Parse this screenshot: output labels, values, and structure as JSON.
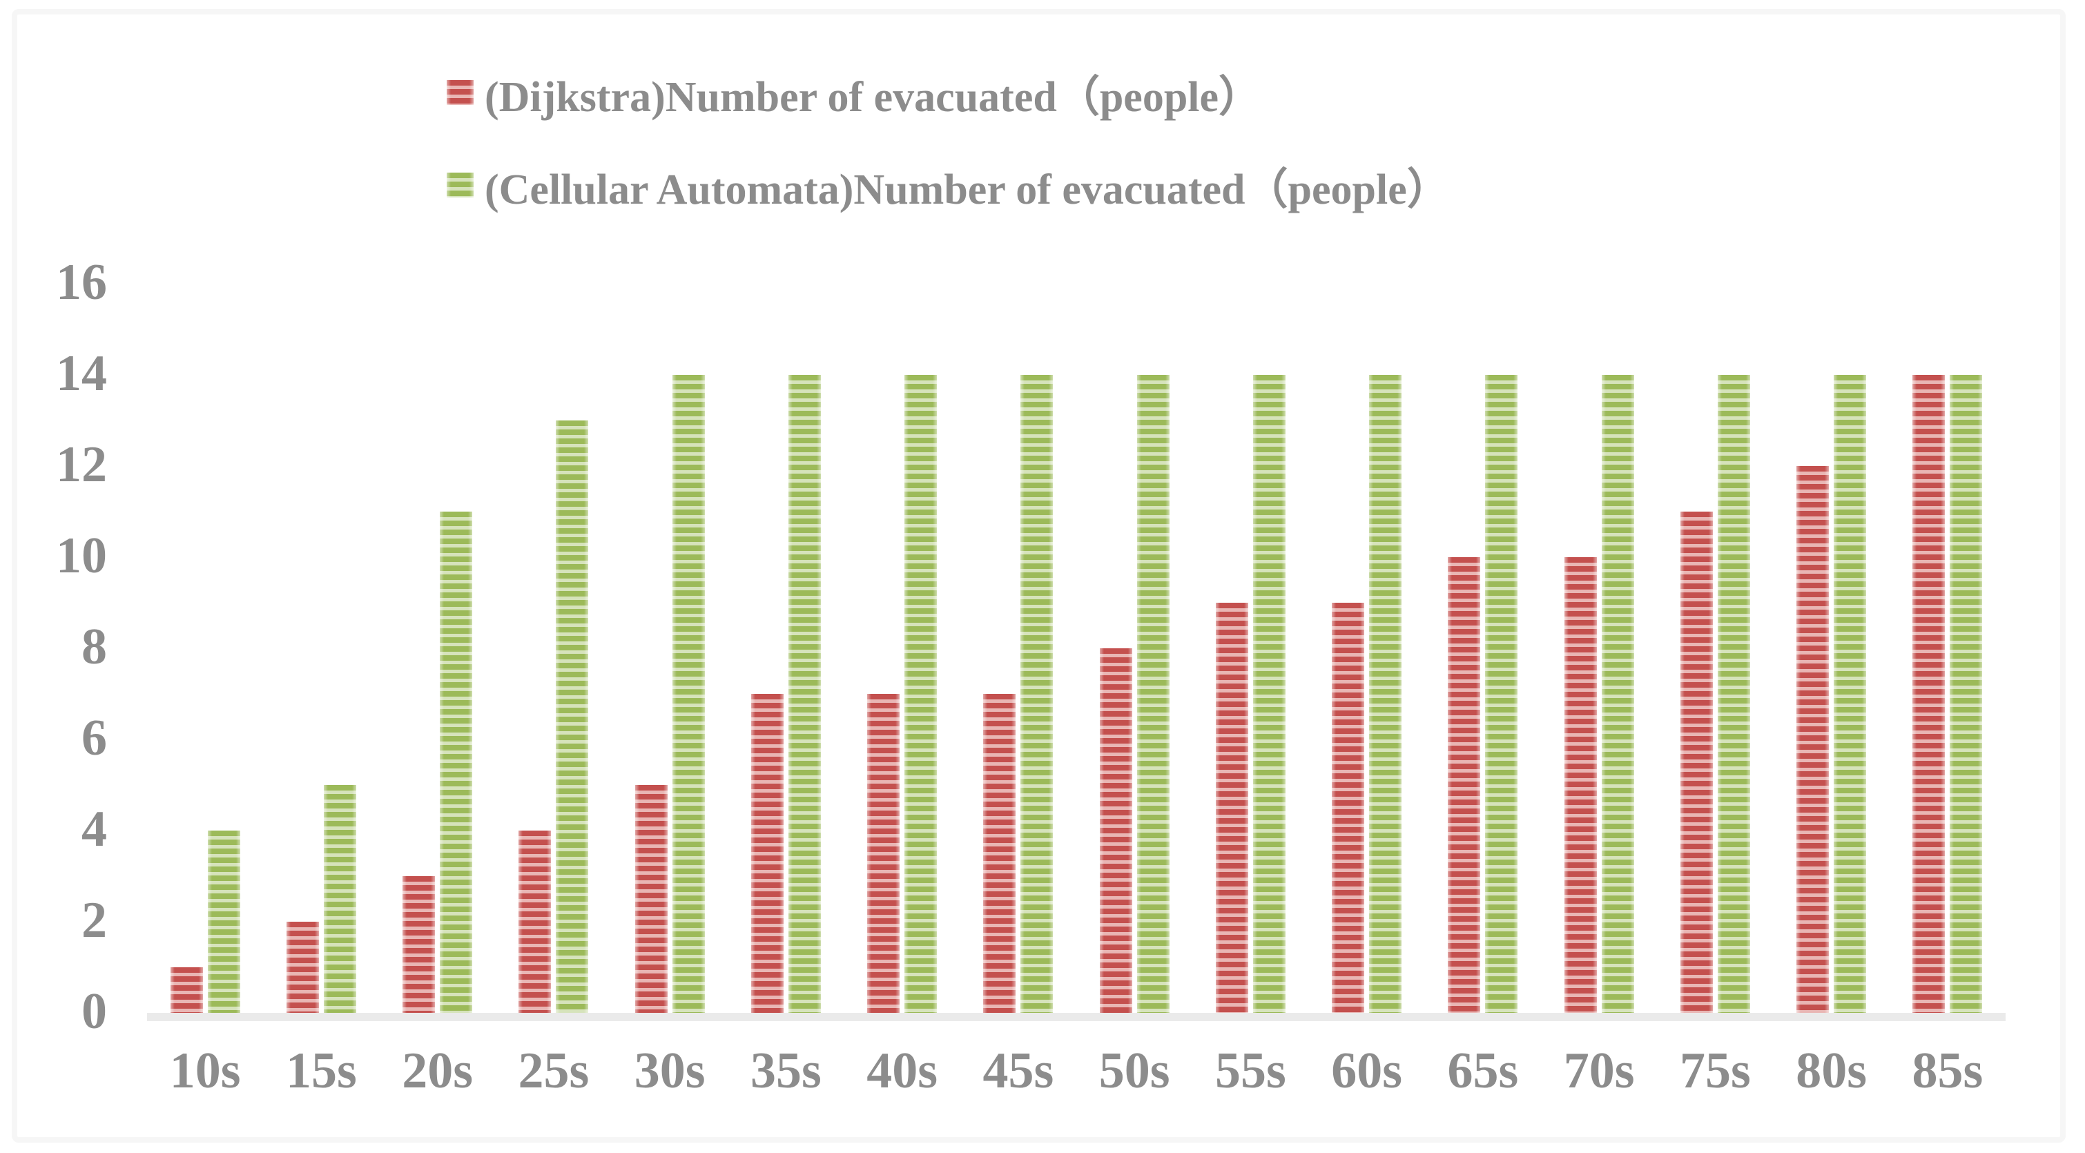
{
  "legend": {
    "items": [
      {
        "label": "(Dijkstra)Number of evacuated（people）",
        "series_key": "dijkstra",
        "marker": "red-striped-square-icon"
      },
      {
        "label": "(Cellular Automata)Number of evacuated（people）",
        "series_key": "cellular",
        "marker": "green-striped-square-icon"
      }
    ]
  },
  "colors": {
    "red_dark": "#C4504E",
    "red_light": "#E9B6B4",
    "green_dark": "#9CBA59",
    "green_light": "#D6E3BB",
    "axis_text": "#8C8C8C",
    "baseline": "#EAEAEA",
    "frame": "#F6F6F6"
  },
  "chart_data": {
    "type": "bar",
    "categories": [
      "10s",
      "15s",
      "20s",
      "25s",
      "30s",
      "35s",
      "40s",
      "45s",
      "50s",
      "55s",
      "60s",
      "65s",
      "70s",
      "75s",
      "80s",
      "85s"
    ],
    "series": [
      {
        "name": "(Dijkstra)Number of evacuated（people）",
        "key": "dijkstra",
        "values": [
          1,
          2,
          3,
          4,
          5,
          7,
          7,
          7,
          8,
          9,
          9,
          10,
          10,
          11,
          12,
          14
        ]
      },
      {
        "name": "(Cellular Automata)Number of evacuated（people）",
        "key": "cellular",
        "values": [
          4,
          5,
          11,
          13,
          14,
          14,
          14,
          14,
          14,
          14,
          14,
          14,
          14,
          14,
          14,
          14
        ]
      }
    ],
    "title": "",
    "xlabel": "",
    "ylabel": "",
    "ylim": [
      0,
      16
    ],
    "yticks": [
      0,
      2,
      4,
      6,
      8,
      10,
      12,
      14,
      16
    ],
    "grid": false,
    "legend_position": "top-center-two-rows",
    "bar_style": "horizontal-striped"
  }
}
